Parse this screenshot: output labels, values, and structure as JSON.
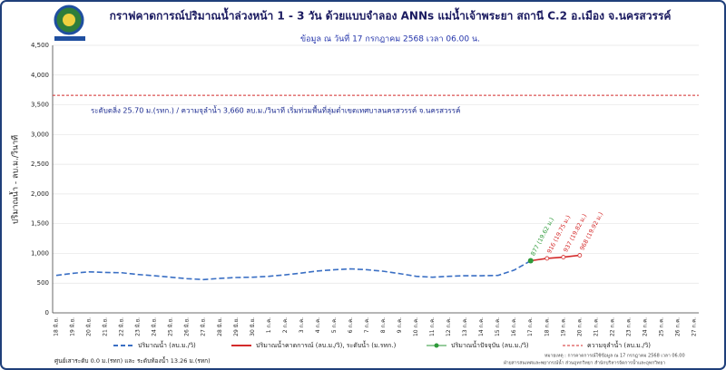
{
  "chart_data": {
    "type": "line",
    "title": "กราฟคาดการณ์ปริมาณน้ำล่วงหน้า 1 - 3 วัน  ด้วยแบบจำลอง ANNs แม่น้ำเจ้าพระยา สถานี C.2 อ.เมือง จ.นครสวรรค์",
    "subtitle": "ข้อมูล ณ วันที่     17 กรกฎาคม 2568     เวลา 06.00 น.",
    "y_label": "ปริมาณน้ำ - ลบ.ม./วินาที",
    "annotation": "ระดับตลิ่ง  25.70 ม.(รทก.)  / ความจุลำน้ำ  3,660 ลบ.ม./วินาที    เริ่มท่วมพื้นที่ลุ่มต่ำเขตเทศบาลนครสวรรค์ จ.นครสวรรค์",
    "footer": "ศูนย์เสาระดับ 0.0 ม.(รทก) และ ระดับท้องน้ำ 13.26 ม.(รทก)",
    "note_lines": [
      "หมายเหตุ : การคาดการณ์ใช้ข้อมูล ณ      17 กรกฎาคม 2568  เวลา 06.00",
      "ฝ่ายสารสนเทศและพยากรณ์น้ำ ส่วนอุทกวิทยา สำนักบริหารจัดการน้ำและอุทกวิทยา"
    ],
    "categories": [
      "18 มิ.ย.",
      "19 มิ.ย.",
      "20 มิ.ย.",
      "21 มิ.ย.",
      "22 มิ.ย.",
      "23 มิ.ย.",
      "24 มิ.ย.",
      "25 มิ.ย.",
      "26 มิ.ย.",
      "27 มิ.ย.",
      "28 มิ.ย.",
      "29 มิ.ย.",
      "30 มิ.ย.",
      "1 ก.ค.",
      "2 ก.ค.",
      "3 ก.ค.",
      "4 ก.ค.",
      "5 ก.ค.",
      "6 ก.ค.",
      "7 ก.ค.",
      "8 ก.ค.",
      "9 ก.ค.",
      "10 ก.ค.",
      "11 ก.ค.",
      "12 ก.ค.",
      "13 ก.ค.",
      "14 ก.ค.",
      "15 ก.ค.",
      "16 ก.ค.",
      "17 ก.ค.",
      "18 ก.ค.",
      "19 ก.ค.",
      "20 ก.ค.",
      "21 ก.ค.",
      "22 ก.ค.",
      "23 ก.ค.",
      "24 ก.ค.",
      "25 ก.ค.",
      "26 ก.ค.",
      "27 ก.ค."
    ],
    "series": [
      {
        "name": "ปริมาณน้ำ (ลบ.ม./วิ)",
        "color": "#3a6fc4",
        "style": "dashed",
        "values": [
          630,
          665,
          690,
          680,
          675,
          645,
          625,
          600,
          575,
          560,
          580,
          595,
          600,
          615,
          640,
          670,
          705,
          725,
          740,
          725,
          700,
          660,
          615,
          600,
          615,
          625,
          625,
          630,
          720,
          877,
          null,
          null,
          null,
          null,
          null,
          null,
          null,
          null,
          null,
          null
        ]
      },
      {
        "name": "ปริมาณน้ำคาดการณ์ (ลบ.ม./วิ), ระดับน้ำ (ม.รทก.)",
        "color": "#d42a2a",
        "style": "solid",
        "values": [
          null,
          null,
          null,
          null,
          null,
          null,
          null,
          null,
          null,
          null,
          null,
          null,
          null,
          null,
          null,
          null,
          null,
          null,
          null,
          null,
          null,
          null,
          null,
          null,
          null,
          null,
          null,
          null,
          null,
          877,
          916,
          937,
          968,
          null,
          null,
          null,
          null,
          null,
          null,
          null
        ],
        "value_labels": [
          null,
          null,
          null,
          null,
          null,
          null,
          null,
          null,
          null,
          null,
          null,
          null,
          null,
          null,
          null,
          null,
          null,
          null,
          null,
          null,
          null,
          null,
          null,
          null,
          null,
          null,
          null,
          null,
          null,
          null,
          "916 (19.75 ม.)",
          "937 (19.82 ม.)",
          "968 (19.92 ม.)",
          null,
          null,
          null,
          null,
          null,
          null,
          null
        ]
      },
      {
        "name": "ปริมาณน้ำปัจจุบัน (ลบ.ม./วิ)",
        "color": "#2e9a3a",
        "style": "point",
        "values": [
          null,
          null,
          null,
          null,
          null,
          null,
          null,
          null,
          null,
          null,
          null,
          null,
          null,
          null,
          null,
          null,
          null,
          null,
          null,
          null,
          null,
          null,
          null,
          null,
          null,
          null,
          null,
          null,
          null,
          877,
          null,
          null,
          null,
          null,
          null,
          null,
          null,
          null,
          null,
          null
        ],
        "value_labels": [
          null,
          null,
          null,
          null,
          null,
          null,
          null,
          null,
          null,
          null,
          null,
          null,
          null,
          null,
          null,
          null,
          null,
          null,
          null,
          null,
          null,
          null,
          null,
          null,
          null,
          null,
          null,
          null,
          null,
          "877 (19.62 ม.)",
          null,
          null,
          null,
          null,
          null,
          null,
          null,
          null,
          null,
          null
        ]
      }
    ],
    "capacity": {
      "name": "ความจุลำน้ำ (ลบ.ม./วิ)",
      "value": 3660,
      "color": "#d42a2a"
    },
    "ylim": [
      0,
      4500
    ],
    "yticks": [
      0,
      500,
      {
        "value": 1000,
        "label": "1,000"
      },
      {
        "value": 1500,
        "label": "1,500"
      },
      {
        "value": 2000,
        "label": "2,000"
      },
      {
        "value": 2500,
        "label": "2,500"
      },
      {
        "value": 3000,
        "label": "3,000"
      },
      {
        "value": 3500,
        "label": "3,500"
      },
      {
        "value": 4000,
        "label": "4,000"
      },
      {
        "value": 4500,
        "label": "4,500"
      }
    ],
    "grid": true
  }
}
